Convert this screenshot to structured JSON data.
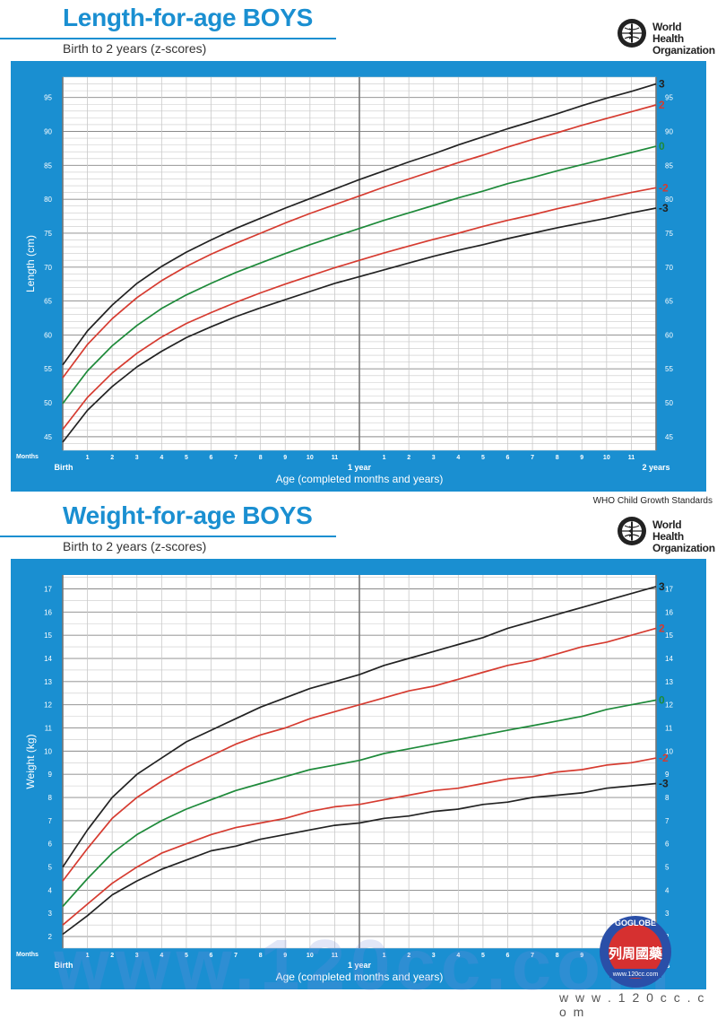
{
  "panels": [
    {
      "title": "Length-for-age BOYS",
      "subtitle": "Birth to 2 years (z-scores)",
      "organization": [
        "World Health",
        "Organization"
      ],
      "footer": "WHO Child Growth Standards"
    },
    {
      "title": "Weight-for-age BOYS",
      "subtitle": "Birth to 2 years (z-scores)",
      "organization": [
        "World Health",
        "Organization"
      ]
    }
  ],
  "chart_data": [
    {
      "type": "line",
      "ylabel": "Length (cm)",
      "xlabel": "Age (completed months and years)",
      "months_label": "Months",
      "x_ticks": [
        "Birth",
        "1",
        "2",
        "3",
        "4",
        "5",
        "6",
        "7",
        "8",
        "9",
        "10",
        "11",
        "1 year",
        "1",
        "2",
        "3",
        "4",
        "5",
        "6",
        "7",
        "8",
        "9",
        "10",
        "11",
        "2 years"
      ],
      "x_major_ticks": [
        "Birth",
        "1 year",
        "2 years"
      ],
      "ylim": [
        43,
        98
      ],
      "y_ticks": [
        45,
        50,
        55,
        60,
        65,
        70,
        75,
        80,
        85,
        90,
        95
      ],
      "y_minor_step": 1,
      "grid": true,
      "x": [
        0,
        1,
        2,
        3,
        4,
        5,
        6,
        7,
        8,
        9,
        10,
        11,
        12,
        13,
        14,
        15,
        16,
        17,
        18,
        19,
        20,
        21,
        22,
        23,
        24
      ],
      "series": [
        {
          "name": "3",
          "color": "#222222",
          "values": [
            55.6,
            60.6,
            64.4,
            67.6,
            70.1,
            72.2,
            74.0,
            75.7,
            77.2,
            78.7,
            80.1,
            81.5,
            82.9,
            84.2,
            85.5,
            86.7,
            88.0,
            89.2,
            90.4,
            91.5,
            92.6,
            93.8,
            94.9,
            95.9,
            97.0
          ]
        },
        {
          "name": "2",
          "color": "#d63b30",
          "values": [
            53.7,
            58.6,
            62.4,
            65.5,
            68.0,
            70.1,
            71.9,
            73.5,
            75.0,
            76.5,
            77.9,
            79.2,
            80.5,
            81.8,
            83.0,
            84.2,
            85.4,
            86.5,
            87.7,
            88.8,
            89.8,
            90.9,
            91.9,
            92.9,
            93.9
          ]
        },
        {
          "name": "0",
          "color": "#1e8a3a",
          "values": [
            49.9,
            54.7,
            58.4,
            61.4,
            63.9,
            65.9,
            67.6,
            69.2,
            70.6,
            72.0,
            73.3,
            74.5,
            75.7,
            76.9,
            78.0,
            79.1,
            80.2,
            81.2,
            82.3,
            83.2,
            84.2,
            85.1,
            86.0,
            86.9,
            87.8
          ]
        },
        {
          "name": "-2",
          "color": "#d63b30",
          "values": [
            46.1,
            50.8,
            54.4,
            57.3,
            59.7,
            61.7,
            63.3,
            64.8,
            66.2,
            67.5,
            68.7,
            69.9,
            71.0,
            72.1,
            73.1,
            74.1,
            75.0,
            76.0,
            76.9,
            77.7,
            78.6,
            79.4,
            80.2,
            81.0,
            81.7
          ]
        },
        {
          "name": "-3",
          "color": "#222222",
          "values": [
            44.2,
            48.9,
            52.4,
            55.3,
            57.6,
            59.6,
            61.2,
            62.7,
            64.0,
            65.2,
            66.4,
            67.6,
            68.6,
            69.6,
            70.6,
            71.6,
            72.5,
            73.3,
            74.2,
            75.0,
            75.8,
            76.5,
            77.2,
            78.0,
            78.7
          ]
        }
      ]
    },
    {
      "type": "line",
      "ylabel": "Weight (kg)",
      "xlabel": "Age (completed months and years)",
      "months_label": "Months",
      "x_ticks": [
        "Birth",
        "1",
        "2",
        "3",
        "4",
        "5",
        "6",
        "7",
        "8",
        "9",
        "10",
        "11",
        "1 year",
        "1",
        "2",
        "3",
        "4",
        "5",
        "6",
        "7",
        "8",
        "9",
        "10",
        "11",
        "2 years"
      ],
      "x_major_ticks": [
        "Birth",
        "1 year",
        "2 years"
      ],
      "ylim": [
        1.5,
        17.6
      ],
      "y_ticks": [
        2,
        3,
        4,
        5,
        6,
        7,
        8,
        9,
        10,
        11,
        12,
        13,
        14,
        15,
        16,
        17
      ],
      "y_minor_step": 0.5,
      "grid": true,
      "x": [
        0,
        1,
        2,
        3,
        4,
        5,
        6,
        7,
        8,
        9,
        10,
        11,
        12,
        13,
        14,
        15,
        16,
        17,
        18,
        19,
        20,
        21,
        22,
        23,
        24
      ],
      "series": [
        {
          "name": "3",
          "color": "#222222",
          "values": [
            5.0,
            6.6,
            8.0,
            9.0,
            9.7,
            10.4,
            10.9,
            11.4,
            11.9,
            12.3,
            12.7,
            13.0,
            13.3,
            13.7,
            14.0,
            14.3,
            14.6,
            14.9,
            15.3,
            15.6,
            15.9,
            16.2,
            16.5,
            16.8,
            17.1
          ]
        },
        {
          "name": "2",
          "color": "#d63b30",
          "values": [
            4.4,
            5.8,
            7.1,
            8.0,
            8.7,
            9.3,
            9.8,
            10.3,
            10.7,
            11.0,
            11.4,
            11.7,
            12.0,
            12.3,
            12.6,
            12.8,
            13.1,
            13.4,
            13.7,
            13.9,
            14.2,
            14.5,
            14.7,
            15.0,
            15.3
          ]
        },
        {
          "name": "0",
          "color": "#1e8a3a",
          "values": [
            3.3,
            4.5,
            5.6,
            6.4,
            7.0,
            7.5,
            7.9,
            8.3,
            8.6,
            8.9,
            9.2,
            9.4,
            9.6,
            9.9,
            10.1,
            10.3,
            10.5,
            10.7,
            10.9,
            11.1,
            11.3,
            11.5,
            11.8,
            12.0,
            12.2
          ]
        },
        {
          "name": "-2",
          "color": "#d63b30",
          "values": [
            2.5,
            3.4,
            4.3,
            5.0,
            5.6,
            6.0,
            6.4,
            6.7,
            6.9,
            7.1,
            7.4,
            7.6,
            7.7,
            7.9,
            8.1,
            8.3,
            8.4,
            8.6,
            8.8,
            8.9,
            9.1,
            9.2,
            9.4,
            9.5,
            9.7
          ]
        },
        {
          "name": "-3",
          "color": "#222222",
          "values": [
            2.1,
            2.9,
            3.8,
            4.4,
            4.9,
            5.3,
            5.7,
            5.9,
            6.2,
            6.4,
            6.6,
            6.8,
            6.9,
            7.1,
            7.2,
            7.4,
            7.5,
            7.7,
            7.8,
            8.0,
            8.1,
            8.2,
            8.4,
            8.5,
            8.6
          ]
        }
      ]
    }
  ],
  "watermark": {
    "large": "www.120cc.com",
    "small": "w w w . 1 2 0 c c . c o m",
    "badge_ring": "GOGLOBE",
    "badge_chars": "列周國藥",
    "badge_url": "www.120cc.com"
  }
}
